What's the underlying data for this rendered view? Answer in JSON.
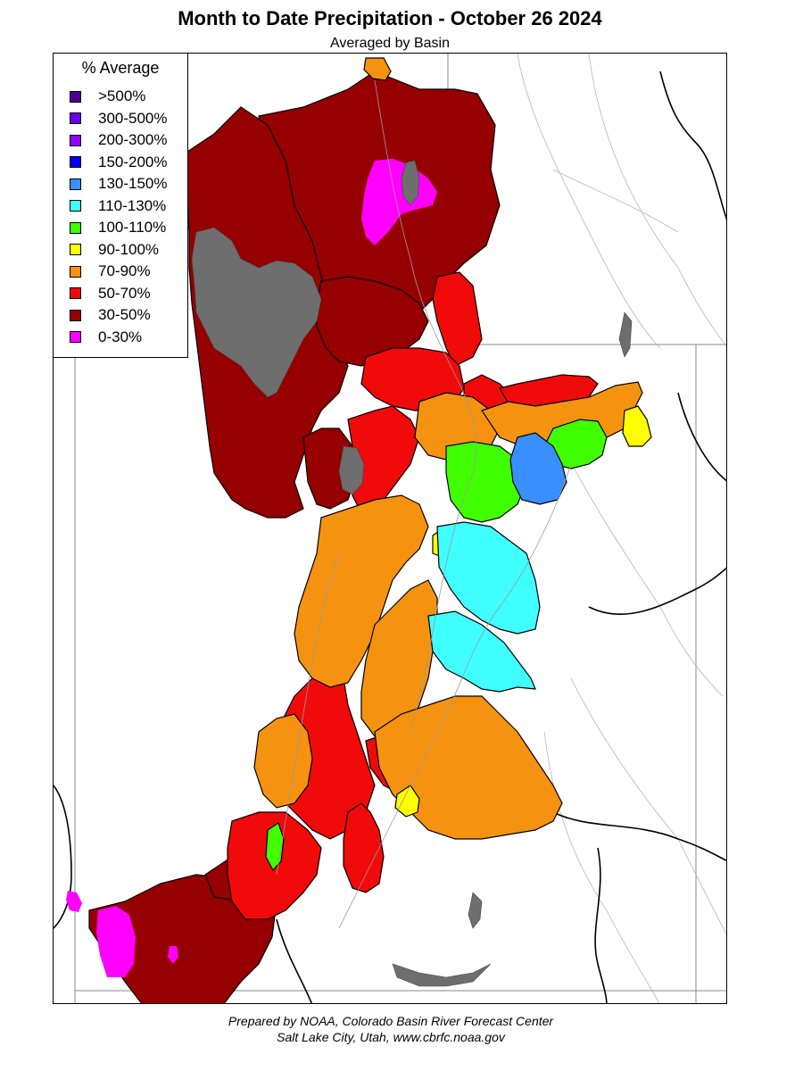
{
  "title": "Month to Date Precipitation - October 26 2024",
  "subtitle": "Averaged by Basin",
  "legend": {
    "title": "% Average",
    "items": [
      {
        "label": ">500%",
        "color": "#4b0090"
      },
      {
        "label": "300-500%",
        "color": "#6a00e8"
      },
      {
        "label": "200-300%",
        "color": "#9400ff"
      },
      {
        "label": "150-200%",
        "color": "#0000ff"
      },
      {
        "label": "130-150%",
        "color": "#3a8fff"
      },
      {
        "label": "110-130%",
        "color": "#40ffff"
      },
      {
        "label": "100-110%",
        "color": "#40ff00"
      },
      {
        "label": "90-100%",
        "color": "#ffff00"
      },
      {
        "label": "70-90%",
        "color": "#f59310"
      },
      {
        "label": "50-70%",
        "color": "#f00a0a"
      },
      {
        "label": "30-50%",
        "color": "#960000"
      },
      {
        "label": "0-30%",
        "color": "#ff00ff"
      }
    ]
  },
  "map_colors": {
    "water": "#6e6e6e",
    "boundary": "#000000",
    "river": "#9a9a9a"
  },
  "credits": {
    "line1": "Prepared by NOAA, Colorado Basin River Forecast Center",
    "line2": "Salt Lake City, Utah, www.cbrfc.noaa.gov"
  }
}
